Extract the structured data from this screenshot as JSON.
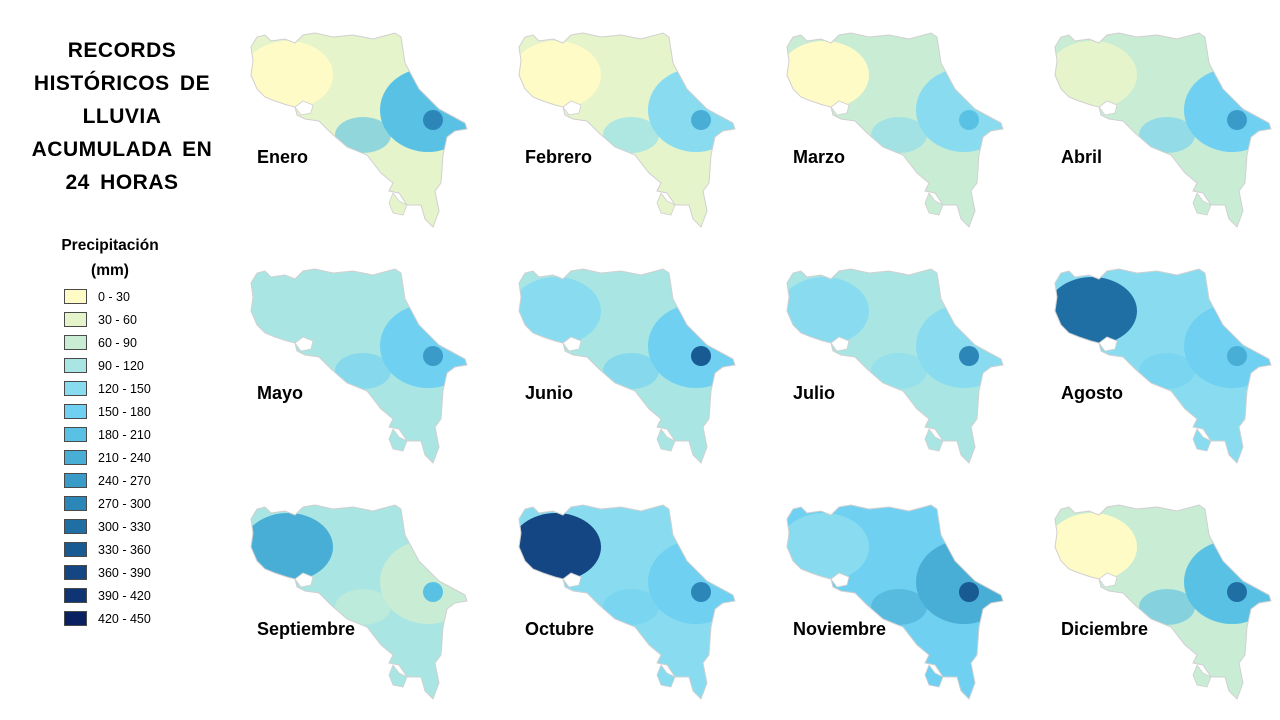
{
  "title": {
    "line1": "RECORDS",
    "line2": "HISTÓRICOS DE",
    "line3": "LLUVIA",
    "line4": "ACUMULADA EN",
    "line5": "24 HORAS"
  },
  "legend": {
    "title_line1": "Precipitación",
    "title_line2": "(mm)",
    "items": [
      {
        "label": "0 - 30",
        "color": "#fefbc6"
      },
      {
        "label": "30 - 60",
        "color": "#e6f4cc"
      },
      {
        "label": "60 - 90",
        "color": "#c9ecd5"
      },
      {
        "label": "90 - 120",
        "color": "#a8e5e3"
      },
      {
        "label": "120 - 150",
        "color": "#89dcf0"
      },
      {
        "label": "150 - 180",
        "color": "#6fd0f1"
      },
      {
        "label": "180 - 210",
        "color": "#59c2e4"
      },
      {
        "label": "210 - 240",
        "color": "#48aed6"
      },
      {
        "label": "240 - 270",
        "color": "#3a9bc8"
      },
      {
        "label": "270 - 300",
        "color": "#2c86b7"
      },
      {
        "label": "300 - 330",
        "color": "#206fa4"
      },
      {
        "label": "330 - 360",
        "color": "#185a92"
      },
      {
        "label": "360 - 390",
        "color": "#134682"
      },
      {
        "label": "390 - 420",
        "color": "#0f3474"
      },
      {
        "label": "420 - 450",
        "color": "#0a2161"
      }
    ]
  },
  "maps": [
    {
      "month": "Enero",
      "base": "#e6f4cc",
      "west": "#fefbc6",
      "east": "#59c2e4",
      "accent": "#2c86b7"
    },
    {
      "month": "Febrero",
      "base": "#e6f4cc",
      "west": "#fefbc6",
      "east": "#89dcf0",
      "accent": "#48aed6"
    },
    {
      "month": "Marzo",
      "base": "#c9ecd5",
      "west": "#fefbc6",
      "east": "#89dcf0",
      "accent": "#59c2e4"
    },
    {
      "month": "Abril",
      "base": "#c9ecd5",
      "west": "#e6f4cc",
      "east": "#6fd0f1",
      "accent": "#3a9bc8"
    },
    {
      "month": "Mayo",
      "base": "#a8e5e3",
      "west": "#a8e5e3",
      "east": "#6fd0f1",
      "accent": "#3a9bc8"
    },
    {
      "month": "Junio",
      "base": "#a8e5e3",
      "west": "#89dcf0",
      "east": "#6fd0f1",
      "accent": "#185a92"
    },
    {
      "month": "Julio",
      "base": "#a8e5e3",
      "west": "#89dcf0",
      "east": "#89dcf0",
      "accent": "#2c86b7"
    },
    {
      "month": "Agosto",
      "base": "#89dcf0",
      "west": "#206fa4",
      "east": "#6fd0f1",
      "accent": "#48aed6"
    },
    {
      "month": "Septiembre",
      "base": "#a8e5e3",
      "west": "#48aed6",
      "east": "#c9ecd5",
      "accent": "#59c2e4"
    },
    {
      "month": "Octubre",
      "base": "#89dcf0",
      "west": "#134682",
      "east": "#6fd0f1",
      "accent": "#2c86b7"
    },
    {
      "month": "Noviembre",
      "base": "#6fd0f1",
      "west": "#89dcf0",
      "east": "#48aed6",
      "accent": "#185a92"
    },
    {
      "month": "Diciembre",
      "base": "#c9ecd5",
      "west": "#fefbc6",
      "east": "#59c2e4",
      "accent": "#206fa4"
    }
  ]
}
